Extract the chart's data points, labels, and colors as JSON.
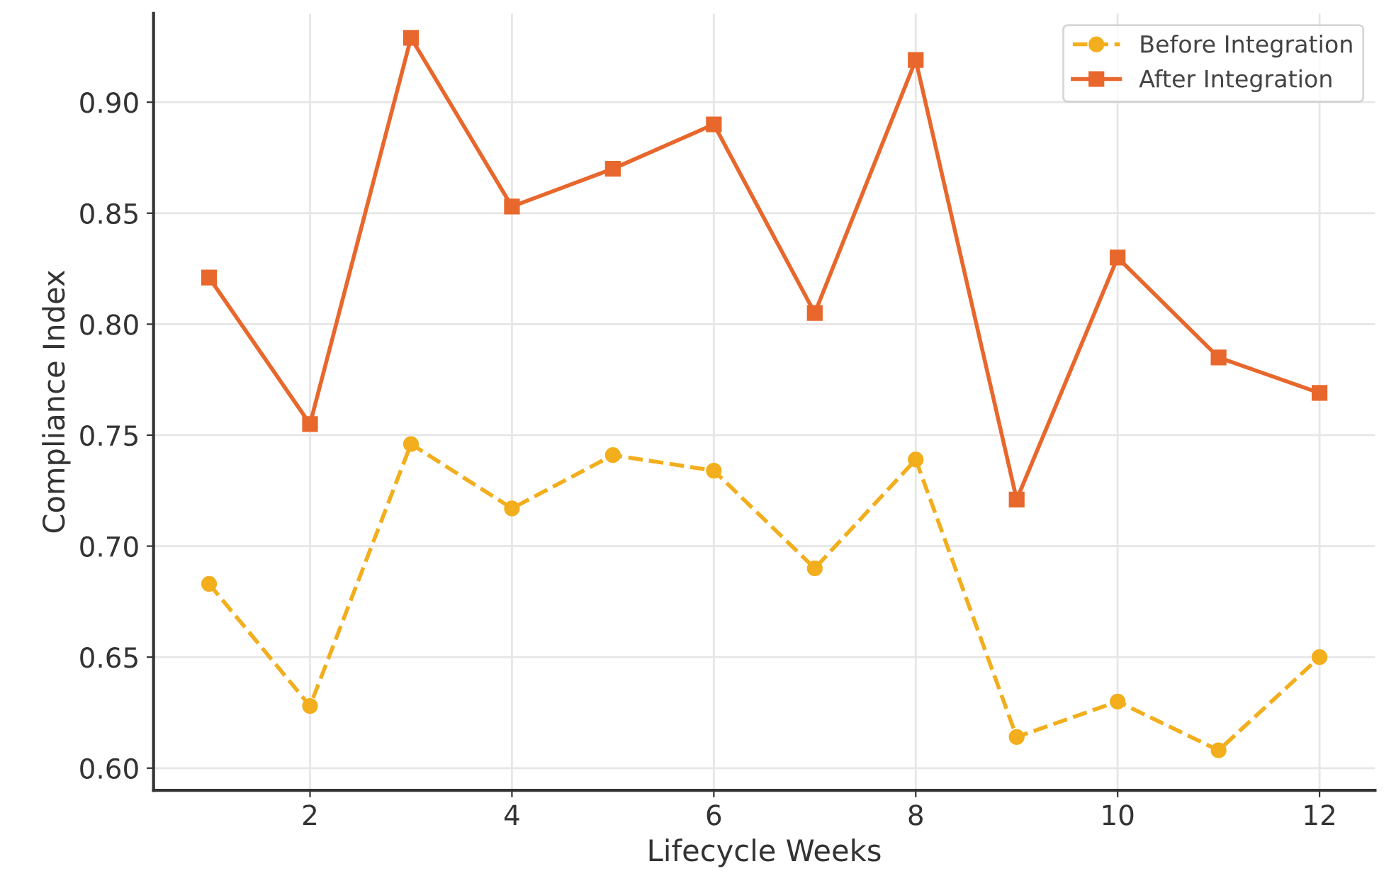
{
  "chart_data": {
    "type": "line",
    "xlabel": "Lifecycle Weeks",
    "ylabel": "Compliance Index",
    "x": [
      1,
      2,
      3,
      4,
      5,
      6,
      7,
      8,
      9,
      10,
      11,
      12
    ],
    "series": [
      {
        "name": "Before Integration",
        "color": "#f2ae1c",
        "marker": "circle",
        "line_style": "dashed",
        "values": [
          0.683,
          0.628,
          0.746,
          0.717,
          0.741,
          0.734,
          0.69,
          0.739,
          0.614,
          0.63,
          0.608,
          0.65
        ]
      },
      {
        "name": "After Integration",
        "color": "#e8672c",
        "marker": "square",
        "line_style": "solid",
        "values": [
          0.821,
          0.755,
          0.929,
          0.853,
          0.87,
          0.89,
          0.805,
          0.919,
          0.721,
          0.83,
          0.785,
          0.769
        ]
      }
    ],
    "xlim": [
      0.45,
      12.55
    ],
    "xticks": [
      2,
      4,
      6,
      8,
      10,
      12
    ],
    "ylim": [
      0.59,
      0.94
    ],
    "yticks": [
      {
        "value": 0.6,
        "label": "0.60"
      },
      {
        "value": 0.65,
        "label": "0.65"
      },
      {
        "value": 0.7,
        "label": "0.70"
      },
      {
        "value": 0.75,
        "label": "0.75"
      },
      {
        "value": 0.8,
        "label": "0.80"
      },
      {
        "value": 0.85,
        "label": "0.85"
      },
      {
        "value": 0.9,
        "label": "0.90"
      }
    ],
    "grid": true,
    "legend": "top right"
  }
}
